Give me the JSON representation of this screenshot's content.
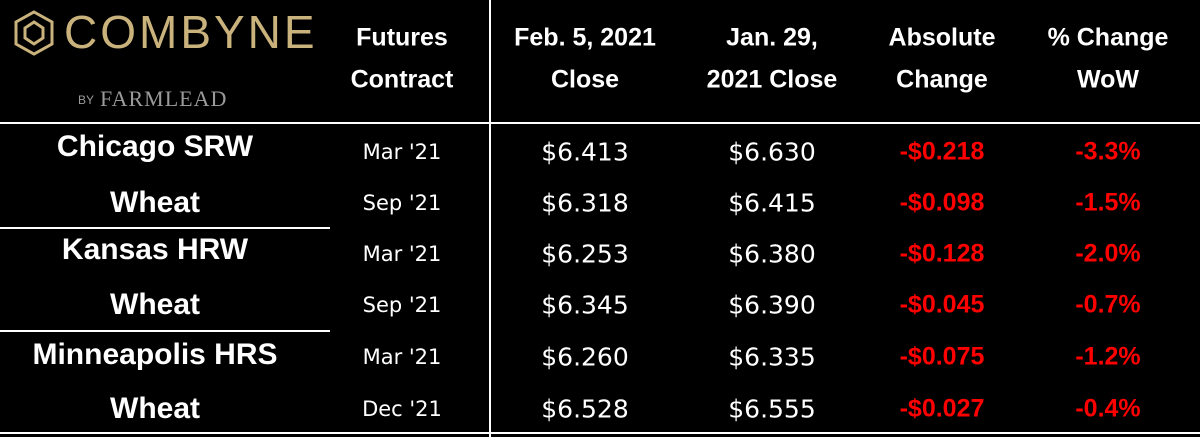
{
  "logo": {
    "name": "COMBYNE",
    "by": "BY",
    "brand": "FARMLEAD"
  },
  "table": {
    "header": [
      [
        "Futures",
        "Contract"
      ],
      [
        "Feb. 5, 2021",
        "Close"
      ],
      [
        "Jan. 29,",
        "2021 Close"
      ],
      [
        "Absolute",
        "Change"
      ],
      [
        "% Change",
        "WoW"
      ]
    ],
    "groups": [
      {
        "name": [
          "Chicago SRW",
          "Wheat"
        ],
        "rows": [
          [
            "Mar '21",
            "$6.413",
            "$6.630",
            "-$0.218",
            "-3.3%"
          ],
          [
            "Sep '21",
            "$6.318",
            "$6.415",
            "-$0.098",
            "-1.5%"
          ]
        ]
      },
      {
        "name": [
          "Kansas HRW",
          "Wheat"
        ],
        "rows": [
          [
            "Mar '21",
            "$6.253",
            "$6.380",
            "-$0.128",
            "-2.0%"
          ],
          [
            "Sep '21",
            "$6.345",
            "$6.390",
            "-$0.045",
            "-0.7%"
          ]
        ]
      },
      {
        "name": [
          "Minneapolis HRS",
          "Wheat"
        ],
        "rows": [
          [
            "Mar '21",
            "$6.260",
            "$6.335",
            "-$0.075",
            "-1.2%"
          ],
          [
            "Dec '21",
            "$6.528",
            "$6.555",
            "-$0.027",
            "-0.4%"
          ]
        ]
      }
    ]
  }
}
